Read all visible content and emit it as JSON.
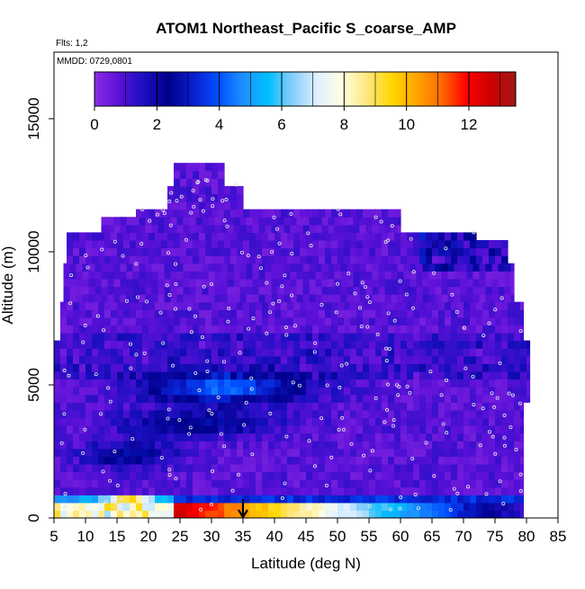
{
  "chart_data": {
    "type": "heatmap",
    "title": "ATOM1 Northeast_Pacific S_coarse_AMP",
    "info_lines": [
      "Flts: 1,2",
      "MMDD: 0729,0801"
    ],
    "xlabel": "Latitude (deg N)",
    "ylabel": "Altitude (m)",
    "xlim": [
      5,
      85
    ],
    "ylim": [
      0,
      17500
    ],
    "xticks": [
      5,
      10,
      15,
      20,
      25,
      30,
      35,
      40,
      45,
      50,
      55,
      60,
      65,
      70,
      75,
      80,
      85
    ],
    "yticks": [
      0,
      5000,
      10000,
      15000
    ],
    "colorbar": {
      "ticks": [
        0,
        2,
        4,
        6,
        8,
        10,
        12
      ],
      "range": [
        0,
        13.5
      ],
      "colors": [
        "#8a2be2",
        "#5a10d8",
        "#1a0fc0",
        "#00008b",
        "#0a1fd0",
        "#0050ff",
        "#1e90ff",
        "#00bfff",
        "#87cefa",
        "#e0f0ff",
        "#ffffe0",
        "#ffe680",
        "#ffd700",
        "#ffa500",
        "#ff6a00",
        "#ff0000",
        "#cc0000",
        "#a01818"
      ]
    },
    "marker": {
      "type": "arrow-down",
      "latitude": 35
    },
    "grid": false,
    "legend": "none"
  }
}
